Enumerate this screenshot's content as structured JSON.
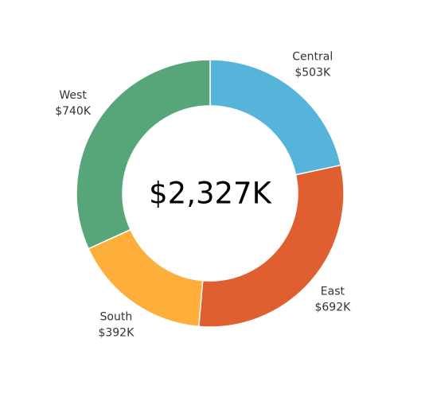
{
  "chart_data": {
    "type": "pie",
    "variant": "donut",
    "title": "",
    "center_label": "$2,327K",
    "slices": [
      {
        "name": "Central",
        "value": 503,
        "value_label": "$503K",
        "color": "#56B4DA"
      },
      {
        "name": "East",
        "value": 692,
        "value_label": "$692K",
        "color": "#E05F30"
      },
      {
        "name": "South",
        "value": 392,
        "value_label": "$392K",
        "color": "#FEAF3B"
      },
      {
        "name": "West",
        "value": 740,
        "value_label": "$740K",
        "color": "#56A67A"
      }
    ],
    "start_angle": "12 o'clock",
    "direction": "clockwise",
    "legend": "none"
  }
}
